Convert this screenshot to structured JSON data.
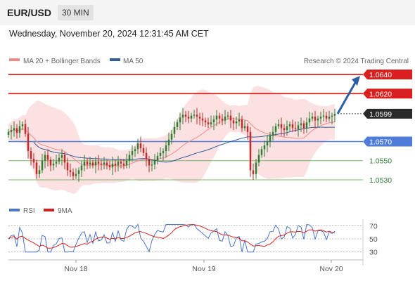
{
  "header": {
    "pair": "EUR/USD",
    "timeframe": "30 MIN",
    "datetime": "Wednesday, November 20, 2024 12:31:45 AM CET"
  },
  "legend": {
    "ma20": "MA 20 + Bollinger Bands",
    "ma50": "MA 50",
    "credit": "Research © 2024 Trading Central",
    "rsi": "RSI",
    "ma9": "9MA"
  },
  "colors": {
    "red_level": "#d9201e",
    "blue_level": "#4f7bd9",
    "green_level": "#7db86b",
    "ma20": "#f08b8b",
    "ma50": "#2f5c9a",
    "band_fill": "#fbe1e1",
    "candle_up": "#2e7d32",
    "candle_down": "#c62828",
    "rsi": "#4a77cc",
    "rsi_ma": "#d9201e",
    "arrow": "#2b5fa6"
  },
  "chart_data": {
    "type": "candlestick",
    "x_ticks": [
      "Nov 18",
      "Nov 19",
      "Nov 20"
    ],
    "levels": [
      {
        "value": 1.064,
        "label": "1.0640",
        "kind": "resistance"
      },
      {
        "value": 1.062,
        "label": "1.0620",
        "kind": "resistance"
      },
      {
        "value": 1.0599,
        "label": "1.0599",
        "kind": "current"
      },
      {
        "value": 1.057,
        "label": "1.0570",
        "kind": "pivot"
      },
      {
        "value": 1.055,
        "label": "1.0550",
        "kind": "support"
      },
      {
        "value": 1.053,
        "label": "1.0530",
        "kind": "support"
      }
    ],
    "ylim": [
      1.052,
      1.066
    ],
    "close_series": [
      1.058,
      1.0582,
      1.0584,
      1.0579,
      1.0586,
      1.0588,
      1.0578,
      1.056,
      1.0552,
      1.0548,
      1.0536,
      1.054,
      1.055,
      1.0556,
      1.0551,
      1.0545,
      1.0547,
      1.0549,
      1.0553,
      1.0556,
      1.0548,
      1.054,
      1.0538,
      1.0534,
      1.0536,
      1.054,
      1.0545,
      1.0549,
      1.0546,
      1.0548,
      1.0545,
      1.0549,
      1.0547,
      1.0546,
      1.0548,
      1.0545,
      1.0543,
      1.0547,
      1.0545,
      1.0549,
      1.0547,
      1.0545,
      1.055,
      1.0556,
      1.056,
      1.0562,
      1.0568,
      1.0563,
      1.0558,
      1.0552,
      1.0545,
      1.0546,
      1.055,
      1.0555,
      1.0558,
      1.056,
      1.0566,
      1.0572,
      1.0578,
      1.0585,
      1.059,
      1.0595,
      1.0598,
      1.0596,
      1.0594,
      1.0597,
      1.0598,
      1.0596,
      1.0594,
      1.0592,
      1.059,
      1.0588,
      1.059,
      1.0593,
      1.0597,
      1.0594,
      1.0592,
      1.0596,
      1.0597,
      1.0592,
      1.0589,
      1.0591,
      1.0593,
      1.0584,
      1.0586,
      1.058,
      1.054,
      1.0536,
      1.0548,
      1.0556,
      1.0562,
      1.0566,
      1.057,
      1.0576,
      1.058,
      1.0586,
      1.0588,
      1.0584,
      1.0582,
      1.0586,
      1.0588,
      1.0584,
      1.0583,
      1.0587,
      1.0589,
      1.0584,
      1.059,
      1.0594,
      1.0596,
      1.0592,
      1.0594,
      1.0596,
      1.0597,
      1.0594,
      1.0596,
      1.0597,
      1.0599
    ],
    "rsi": {
      "scale": [
        70,
        50,
        30
      ],
      "ylim": [
        20,
        80
      ]
    }
  }
}
